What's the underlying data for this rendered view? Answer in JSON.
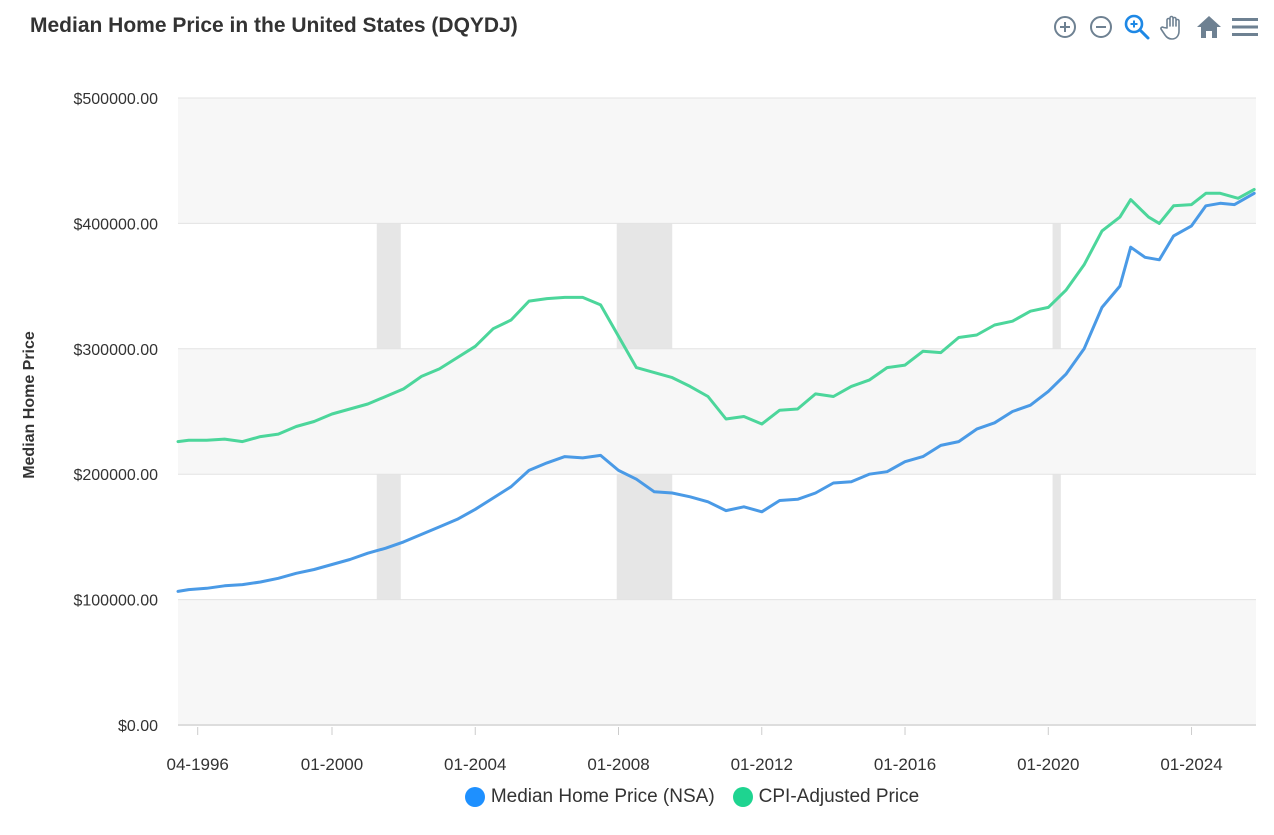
{
  "header": {
    "title": "Median Home Price in the United States (DQYDJ)"
  },
  "toolbar": {
    "buttons": [
      {
        "icon": "zoom-in-icon",
        "label": "Zoom in"
      },
      {
        "icon": "zoom-out-icon",
        "label": "Zoom out"
      },
      {
        "icon": "selection-zoom-icon",
        "label": "Selection zoom"
      },
      {
        "icon": "pan-hand-icon",
        "label": "Panning"
      },
      {
        "icon": "home-icon",
        "label": "Reset zoom"
      },
      {
        "icon": "menu-icon",
        "label": "Menu"
      }
    ],
    "active_color": "#1E88E5",
    "icon_color": "#6E8192"
  },
  "chart_data": {
    "type": "line",
    "title": "Median Home Price in the United States (DQYDJ)",
    "xlabel": "",
    "ylabel": "Median Home Price",
    "xlim": [
      1995.7,
      2025.8
    ],
    "ylim": [
      0,
      500000
    ],
    "yticks": [
      {
        "value": 0,
        "label": "$0.00"
      },
      {
        "value": 100000,
        "label": "$100000.00"
      },
      {
        "value": 200000,
        "label": "$200000.00"
      },
      {
        "value": 300000,
        "label": "$300000.00"
      },
      {
        "value": 400000,
        "label": "$400000.00"
      },
      {
        "value": 500000,
        "label": "$500000.00"
      }
    ],
    "xticks": [
      {
        "value": 1996.25,
        "label": "04-1996"
      },
      {
        "value": 2000.0,
        "label": "01-2000"
      },
      {
        "value": 2004.0,
        "label": "01-2004"
      },
      {
        "value": 2008.0,
        "label": "01-2008"
      },
      {
        "value": 2012.0,
        "label": "01-2012"
      },
      {
        "value": 2016.0,
        "label": "01-2016"
      },
      {
        "value": 2020.0,
        "label": "01-2020"
      },
      {
        "value": 2024.0,
        "label": "01-2024"
      }
    ],
    "grid": true,
    "legend_position": "bottom",
    "recession_bands": [
      {
        "start": 2001.25,
        "end": 2001.92
      },
      {
        "start": 2007.95,
        "end": 2009.5
      },
      {
        "start": 2020.12,
        "end": 2020.35
      }
    ],
    "series": [
      {
        "name": "Median Home Price (NSA)",
        "color": "#4A9AE6",
        "legend_color": "#1E90FF",
        "points": [
          [
            1995.7,
            106500
          ],
          [
            1996.0,
            108000
          ],
          [
            1996.5,
            109000
          ],
          [
            1997.0,
            111000
          ],
          [
            1997.5,
            112000
          ],
          [
            1998.0,
            114000
          ],
          [
            1998.5,
            117000
          ],
          [
            1999.0,
            121000
          ],
          [
            1999.5,
            124000
          ],
          [
            2000.0,
            128000
          ],
          [
            2000.5,
            132000
          ],
          [
            2001.0,
            137000
          ],
          [
            2001.5,
            141000
          ],
          [
            2002.0,
            146000
          ],
          [
            2002.5,
            152000
          ],
          [
            2003.0,
            158000
          ],
          [
            2003.5,
            164000
          ],
          [
            2004.0,
            172000
          ],
          [
            2004.5,
            181000
          ],
          [
            2005.0,
            190000
          ],
          [
            2005.5,
            203000
          ],
          [
            2006.0,
            209000
          ],
          [
            2006.5,
            214000
          ],
          [
            2007.0,
            213000
          ],
          [
            2007.5,
            215000
          ],
          [
            2008.0,
            203000
          ],
          [
            2008.5,
            196000
          ],
          [
            2009.0,
            186000
          ],
          [
            2009.5,
            185000
          ],
          [
            2010.0,
            182000
          ],
          [
            2010.5,
            178000
          ],
          [
            2011.0,
            171000
          ],
          [
            2011.5,
            174000
          ],
          [
            2012.0,
            170000
          ],
          [
            2012.5,
            179000
          ],
          [
            2013.0,
            180000
          ],
          [
            2013.5,
            185000
          ],
          [
            2014.0,
            193000
          ],
          [
            2014.5,
            194000
          ],
          [
            2015.0,
            200000
          ],
          [
            2015.5,
            202000
          ],
          [
            2016.0,
            210000
          ],
          [
            2016.5,
            214000
          ],
          [
            2017.0,
            223000
          ],
          [
            2017.5,
            226000
          ],
          [
            2018.0,
            236000
          ],
          [
            2018.5,
            241000
          ],
          [
            2019.0,
            250000
          ],
          [
            2019.5,
            255000
          ],
          [
            2020.0,
            266000
          ],
          [
            2020.5,
            280000
          ],
          [
            2021.0,
            300000
          ],
          [
            2021.5,
            333000
          ],
          [
            2022.0,
            350000
          ],
          [
            2022.3,
            381000
          ],
          [
            2022.7,
            373000
          ],
          [
            2023.1,
            371000
          ],
          [
            2023.5,
            390000
          ],
          [
            2024.0,
            398000
          ],
          [
            2024.4,
            414000
          ],
          [
            2024.8,
            416000
          ],
          [
            2025.2,
            415000
          ],
          [
            2025.75,
            424000
          ]
        ]
      },
      {
        "name": "CPI-Adjusted Price",
        "color": "#4CD69B",
        "legend_color": "#1ED490",
        "points": [
          [
            1995.7,
            226000
          ],
          [
            1996.0,
            227000
          ],
          [
            1996.5,
            227000
          ],
          [
            1997.0,
            228000
          ],
          [
            1997.5,
            226000
          ],
          [
            1998.0,
            230000
          ],
          [
            1998.5,
            232000
          ],
          [
            1999.0,
            238000
          ],
          [
            1999.5,
            242000
          ],
          [
            2000.0,
            248000
          ],
          [
            2000.5,
            252000
          ],
          [
            2001.0,
            256000
          ],
          [
            2001.5,
            262000
          ],
          [
            2002.0,
            268000
          ],
          [
            2002.5,
            278000
          ],
          [
            2003.0,
            284000
          ],
          [
            2003.5,
            293000
          ],
          [
            2004.0,
            302000
          ],
          [
            2004.5,
            316000
          ],
          [
            2005.0,
            323000
          ],
          [
            2005.5,
            338000
          ],
          [
            2006.0,
            340000
          ],
          [
            2006.5,
            341000
          ],
          [
            2007.0,
            341000
          ],
          [
            2007.5,
            335000
          ],
          [
            2008.0,
            310000
          ],
          [
            2008.5,
            285000
          ],
          [
            2009.0,
            281000
          ],
          [
            2009.5,
            277000
          ],
          [
            2010.0,
            270000
          ],
          [
            2010.5,
            262000
          ],
          [
            2011.0,
            244000
          ],
          [
            2011.5,
            246000
          ],
          [
            2012.0,
            240000
          ],
          [
            2012.5,
            251000
          ],
          [
            2013.0,
            252000
          ],
          [
            2013.5,
            264000
          ],
          [
            2014.0,
            262000
          ],
          [
            2014.5,
            270000
          ],
          [
            2015.0,
            275000
          ],
          [
            2015.5,
            285000
          ],
          [
            2016.0,
            287000
          ],
          [
            2016.5,
            298000
          ],
          [
            2017.0,
            297000
          ],
          [
            2017.5,
            309000
          ],
          [
            2018.0,
            311000
          ],
          [
            2018.5,
            319000
          ],
          [
            2019.0,
            322000
          ],
          [
            2019.5,
            330000
          ],
          [
            2020.0,
            333000
          ],
          [
            2020.5,
            347000
          ],
          [
            2021.0,
            367000
          ],
          [
            2021.5,
            394000
          ],
          [
            2022.0,
            405000
          ],
          [
            2022.3,
            419000
          ],
          [
            2022.8,
            405000
          ],
          [
            2023.1,
            400000
          ],
          [
            2023.5,
            414000
          ],
          [
            2024.0,
            415000
          ],
          [
            2024.4,
            424000
          ],
          [
            2024.8,
            424000
          ],
          [
            2025.3,
            420000
          ],
          [
            2025.75,
            427000
          ]
        ]
      }
    ]
  },
  "legend": {
    "items": [
      {
        "label": "Median Home Price (NSA)",
        "color": "#1E90FF"
      },
      {
        "label": "CPI-Adjusted Price",
        "color": "#1ED490"
      }
    ]
  }
}
